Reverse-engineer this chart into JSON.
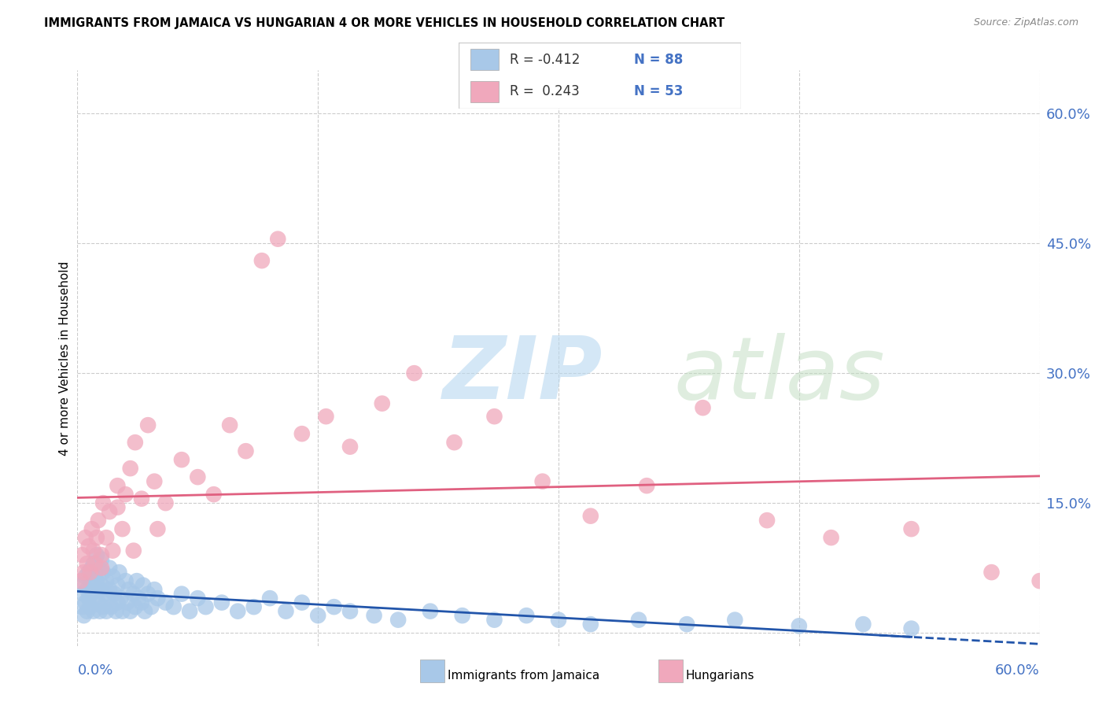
{
  "title": "IMMIGRANTS FROM JAMAICA VS HUNGARIAN 4 OR MORE VEHICLES IN HOUSEHOLD CORRELATION CHART",
  "source": "Source: ZipAtlas.com",
  "ylabel": "4 or more Vehicles in Household",
  "color_jamaica": "#a8c8e8",
  "color_hungarian": "#f0a8bc",
  "line_color_jamaica": "#2255aa",
  "line_color_hungarian": "#e06080",
  "xmin": 0.0,
  "xmax": 0.6,
  "ymin": -0.015,
  "ymax": 0.65,
  "ytick_vals": [
    0.0,
    0.15,
    0.3,
    0.45,
    0.6
  ],
  "ytick_labels": [
    "",
    "15.0%",
    "30.0%",
    "45.0%",
    "60.0%"
  ],
  "jamaica_x": [
    0.002,
    0.003,
    0.004,
    0.004,
    0.005,
    0.005,
    0.006,
    0.006,
    0.007,
    0.007,
    0.008,
    0.008,
    0.009,
    0.009,
    0.01,
    0.01,
    0.01,
    0.011,
    0.011,
    0.012,
    0.012,
    0.013,
    0.013,
    0.014,
    0.014,
    0.015,
    0.015,
    0.016,
    0.016,
    0.017,
    0.018,
    0.018,
    0.019,
    0.02,
    0.02,
    0.021,
    0.022,
    0.023,
    0.024,
    0.025,
    0.025,
    0.026,
    0.027,
    0.028,
    0.03,
    0.031,
    0.032,
    0.033,
    0.035,
    0.036,
    0.037,
    0.038,
    0.04,
    0.041,
    0.042,
    0.044,
    0.046,
    0.048,
    0.05,
    0.055,
    0.06,
    0.065,
    0.07,
    0.075,
    0.08,
    0.09,
    0.1,
    0.11,
    0.12,
    0.13,
    0.14,
    0.15,
    0.16,
    0.17,
    0.185,
    0.2,
    0.22,
    0.24,
    0.26,
    0.28,
    0.3,
    0.32,
    0.35,
    0.38,
    0.41,
    0.45,
    0.49,
    0.52
  ],
  "jamaica_y": [
    0.055,
    0.03,
    0.045,
    0.02,
    0.065,
    0.035,
    0.05,
    0.025,
    0.07,
    0.04,
    0.06,
    0.03,
    0.075,
    0.045,
    0.08,
    0.055,
    0.025,
    0.07,
    0.04,
    0.09,
    0.06,
    0.035,
    0.075,
    0.05,
    0.025,
    0.085,
    0.055,
    0.03,
    0.07,
    0.045,
    0.06,
    0.025,
    0.04,
    0.075,
    0.05,
    0.03,
    0.065,
    0.045,
    0.025,
    0.055,
    0.035,
    0.07,
    0.04,
    0.025,
    0.06,
    0.035,
    0.05,
    0.025,
    0.045,
    0.03,
    0.06,
    0.04,
    0.035,
    0.055,
    0.025,
    0.045,
    0.03,
    0.05,
    0.04,
    0.035,
    0.03,
    0.045,
    0.025,
    0.04,
    0.03,
    0.035,
    0.025,
    0.03,
    0.04,
    0.025,
    0.035,
    0.02,
    0.03,
    0.025,
    0.02,
    0.015,
    0.025,
    0.02,
    0.015,
    0.02,
    0.015,
    0.01,
    0.015,
    0.01,
    0.015,
    0.008,
    0.01,
    0.005
  ],
  "hungarian_x": [
    0.002,
    0.003,
    0.004,
    0.005,
    0.006,
    0.007,
    0.008,
    0.009,
    0.01,
    0.011,
    0.012,
    0.013,
    0.015,
    0.016,
    0.018,
    0.02,
    0.022,
    0.025,
    0.028,
    0.03,
    0.033,
    0.036,
    0.04,
    0.044,
    0.048,
    0.055,
    0.065,
    0.075,
    0.085,
    0.095,
    0.105,
    0.115,
    0.125,
    0.14,
    0.155,
    0.17,
    0.19,
    0.21,
    0.235,
    0.26,
    0.29,
    0.32,
    0.355,
    0.39,
    0.43,
    0.47,
    0.52,
    0.57,
    0.6,
    0.015,
    0.025,
    0.035,
    0.05
  ],
  "hungarian_y": [
    0.06,
    0.09,
    0.07,
    0.11,
    0.08,
    0.1,
    0.07,
    0.12,
    0.095,
    0.08,
    0.11,
    0.13,
    0.09,
    0.15,
    0.11,
    0.14,
    0.095,
    0.17,
    0.12,
    0.16,
    0.19,
    0.22,
    0.155,
    0.24,
    0.175,
    0.15,
    0.2,
    0.18,
    0.16,
    0.24,
    0.21,
    0.43,
    0.455,
    0.23,
    0.25,
    0.215,
    0.265,
    0.3,
    0.22,
    0.25,
    0.175,
    0.135,
    0.17,
    0.26,
    0.13,
    0.11,
    0.12,
    0.07,
    0.06,
    0.075,
    0.145,
    0.095,
    0.12
  ]
}
